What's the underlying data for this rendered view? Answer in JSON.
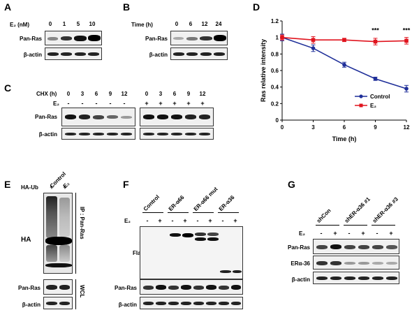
{
  "panels": {
    "A": {
      "letter": "A",
      "condition": "E₂ (nM)",
      "doses": [
        "0",
        "1",
        "5",
        "10"
      ],
      "rows": [
        "Pan-Ras",
        "β-actin"
      ]
    },
    "B": {
      "letter": "B",
      "condition": "Time (h)",
      "times": [
        "0",
        "6",
        "12",
        "24"
      ],
      "rows": [
        "Pan-Ras",
        "β-actin"
      ]
    },
    "C": {
      "letter": "C",
      "chx_label": "CHX (h)",
      "e2_label": "E₂",
      "chx_times": [
        "0",
        "3",
        "6",
        "9",
        "12",
        "0",
        "3",
        "6",
        "9",
        "12"
      ],
      "e2_signs": [
        "-",
        "-",
        "-",
        "-",
        "-",
        "+",
        "+",
        "+",
        "+",
        "+"
      ],
      "rows": [
        "Pan-Ras",
        "β-actin"
      ]
    },
    "D": {
      "letter": "D"
    },
    "E": {
      "letter": "E",
      "lanes": [
        "Control",
        "E₂"
      ],
      "haub_label": "HA-Ub",
      "haub_signs": [
        "+",
        "+"
      ],
      "ha_label": "HA",
      "ip_label": "IP : Pan-Ras",
      "wcl_label": "WCL",
      "rows": [
        "Pan-Ras",
        "β-actin"
      ]
    },
    "F": {
      "letter": "F",
      "groups": [
        "Control",
        "ER-α66",
        "ER-α66 mut",
        "ER-α36"
      ],
      "e2_label": "E₂",
      "e2_signs": [
        "-",
        "+",
        "-",
        "+",
        "-",
        "+",
        "-",
        "+"
      ],
      "rows": [
        "Flag",
        "Pan-Ras",
        "β-actin"
      ]
    },
    "G": {
      "letter": "G",
      "groups": [
        "shCon",
        "shER-α36 #1",
        "shER-α36 #3"
      ],
      "e2_label": "E₂",
      "e2_signs": [
        "-",
        "+",
        "-",
        "+",
        "-",
        "+"
      ],
      "rows": [
        "Pan-Ras",
        "ERα-36",
        "β-actin"
      ]
    }
  },
  "chart_data": {
    "type": "line",
    "xlabel": "Time (h)",
    "ylabel": "Ras relative intensity",
    "x": [
      0,
      3,
      6,
      9,
      12
    ],
    "xlim": [
      0,
      12
    ],
    "ylim": [
      0,
      1.2
    ],
    "yticks": [
      "0",
      "0.2",
      "0.4",
      "0.6",
      "0.8",
      "1",
      "1.2"
    ],
    "xticks": [
      "0",
      "3",
      "6",
      "9",
      "12"
    ],
    "series": [
      {
        "name": "Control",
        "values": [
          1.0,
          0.87,
          0.67,
          0.5,
          0.38
        ],
        "errors": [
          0.04,
          0.04,
          0.03,
          0.02,
          0.04
        ],
        "color": "#1f2f99"
      },
      {
        "name": "E₂",
        "values": [
          1.0,
          0.97,
          0.97,
          0.95,
          0.96
        ],
        "errors": [
          0.03,
          0.04,
          0.02,
          0.04,
          0.04
        ],
        "color": "#e0141e"
      }
    ],
    "significance": [
      {
        "x": 9,
        "label": "***"
      },
      {
        "x": 12,
        "label": "***"
      }
    ],
    "legend_position": "bottom-right"
  }
}
